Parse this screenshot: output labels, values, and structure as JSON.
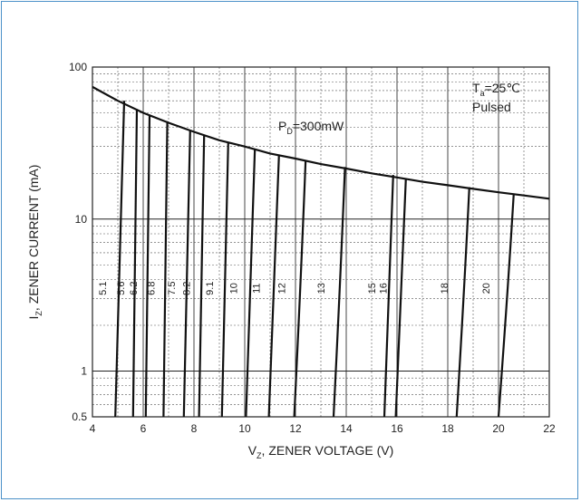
{
  "chart_data": {
    "type": "line",
    "title": "",
    "xlabel": {
      "prefix": "V",
      "sub": "Z",
      "rest": ", ZENER VOLTAGE (V)"
    },
    "ylabel": {
      "prefix": "I",
      "sub": "Z",
      "rest": ", ZENER CURRENT (mA)"
    },
    "x_range": [
      4,
      22
    ],
    "y_range": [
      0.5,
      100
    ],
    "y_scale": "log",
    "grid": true,
    "x_ticks": [
      4,
      6,
      8,
      10,
      12,
      14,
      16,
      18,
      20,
      22
    ],
    "y_ticks": [
      {
        "value": 0.5,
        "label": "0.5"
      },
      {
        "value": 1,
        "label": "1"
      },
      {
        "value": 10,
        "label": "10"
      },
      {
        "value": 100,
        "label": "100"
      }
    ],
    "annotations": {
      "condition_temp": {
        "prefix": "T",
        "sub": "a",
        "rest": "=25℃"
      },
      "condition_mode": "Pulsed",
      "power_limit": {
        "prefix": "P",
        "sub": "D",
        "rest": "=300mW"
      }
    },
    "power_limit_curve": {
      "name": "PD=300mW",
      "points": [
        [
          4.0,
          74
        ],
        [
          5.0,
          60
        ],
        [
          6.0,
          50
        ],
        [
          7.0,
          43
        ],
        [
          8.0,
          37.5
        ],
        [
          9.0,
          33
        ],
        [
          10.0,
          30
        ],
        [
          11.0,
          27
        ],
        [
          12.0,
          25
        ],
        [
          13.0,
          23
        ],
        [
          14.0,
          21.5
        ],
        [
          15.0,
          20
        ],
        [
          16.0,
          18.8
        ],
        [
          17.0,
          17.6
        ],
        [
          18.0,
          16.7
        ],
        [
          19.0,
          15.8
        ],
        [
          20.0,
          15
        ],
        [
          21.0,
          14.3
        ],
        [
          22.0,
          13.6
        ]
      ]
    },
    "series": [
      {
        "name": "5.1",
        "x_bottom": 4.9,
        "x_top": 5.25,
        "y_top": 60
      },
      {
        "name": "5.6",
        "x_bottom": 5.6,
        "x_top": 5.75,
        "y_top": 53
      },
      {
        "name": "6.2",
        "x_bottom": 6.1,
        "x_top": 6.25,
        "y_top": 48
      },
      {
        "name": "6.8",
        "x_bottom": 6.8,
        "x_top": 6.95,
        "y_top": 44
      },
      {
        "name": "7.5",
        "x_bottom": 7.6,
        "x_top": 7.85,
        "y_top": 38.5
      },
      {
        "name": "8.2",
        "x_bottom": 8.2,
        "x_top": 8.4,
        "y_top": 35.5
      },
      {
        "name": "9.1",
        "x_bottom": 9.1,
        "x_top": 9.35,
        "y_top": 32
      },
      {
        "name": "10",
        "x_bottom": 10.05,
        "x_top": 10.4,
        "y_top": 29
      },
      {
        "name": "11",
        "x_bottom": 10.95,
        "x_top": 11.35,
        "y_top": 26.5
      },
      {
        "name": "12",
        "x_bottom": 11.95,
        "x_top": 12.4,
        "y_top": 24.5
      },
      {
        "name": "13",
        "x_bottom": 13.5,
        "x_top": 13.95,
        "y_top": 22
      },
      {
        "name": "15",
        "x_bottom": 15.5,
        "x_top": 15.85,
        "y_top": 19.5
      },
      {
        "name": "16",
        "x_bottom": 15.95,
        "x_top": 16.35,
        "y_top": 18.5
      },
      {
        "name": "18",
        "x_bottom": 18.35,
        "x_top": 18.85,
        "y_top": 16.2
      },
      {
        "name": "20",
        "x_bottom": 20.0,
        "x_top": 20.6,
        "y_top": 14.7
      }
    ]
  }
}
